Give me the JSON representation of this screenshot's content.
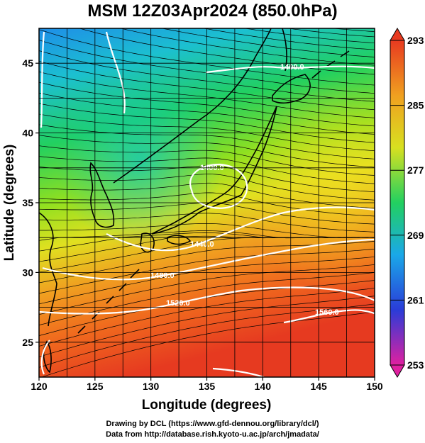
{
  "title": "MSM 12Z03Apr2024 (850.0hPa)",
  "axes": {
    "xlabel": "Longitude (degrees)",
    "ylabel": "Latitude  (degrees)",
    "xticks": [
      "120",
      "125",
      "130",
      "135",
      "140",
      "145",
      "150"
    ],
    "yticks": [
      "25",
      "30",
      "35",
      "40",
      "45"
    ]
  },
  "colorbar": {
    "labels": [
      "293",
      "285",
      "277",
      "269",
      "261",
      "253"
    ],
    "colors": [
      "#e0208a",
      "#2a3cd8",
      "#1aa8e8",
      "#22d060",
      "#d8e020",
      "#f0a020",
      "#e83a20"
    ]
  },
  "contour_labels": [
    "1400.0",
    "1400.0",
    "1440.0",
    "1480.0",
    "1520.0",
    "1560.0"
  ],
  "credits": {
    "line1": "Drawing by DCL (https://www.gfd-dennou.org/library/dcl/)",
    "line2": "Data from http://database.rish.kyoto-u.ac.jp/arch/jmadata/"
  },
  "chart_data": {
    "type": "heatmap",
    "title": "MSM 12Z03Apr2024 (850.0hPa)",
    "xlabel": "Longitude (degrees)",
    "ylabel": "Latitude  (degrees)",
    "xlim": [
      120,
      150
    ],
    "ylim": [
      22.5,
      47.5
    ],
    "colorbar_range": [
      253,
      293
    ],
    "colorbar_ticks": [
      293,
      285,
      277,
      269,
      261,
      253
    ],
    "grid": true,
    "overlays": [
      "streamlines",
      "geopotential height contours",
      "coastlines"
    ],
    "contour_levels": [
      1400,
      1440,
      1480,
      1520,
      1560
    ]
  }
}
